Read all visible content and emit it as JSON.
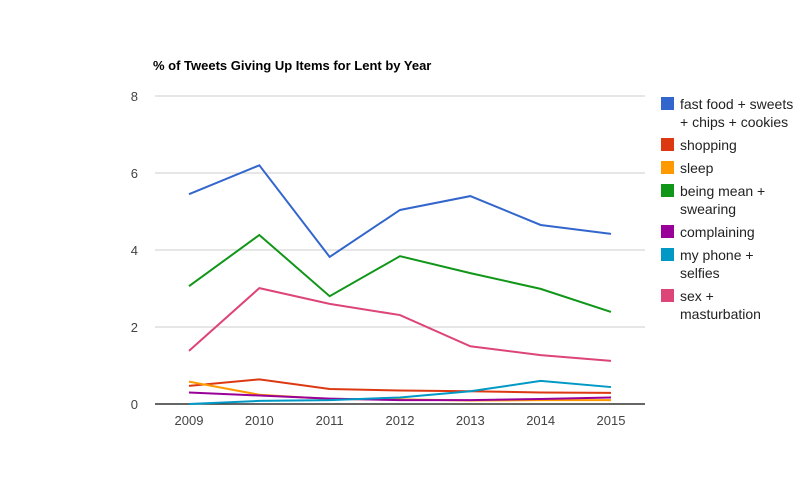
{
  "chart_data": {
    "type": "line",
    "title": "% of Tweets Giving Up Items for Lent by Year",
    "xlabel": "",
    "ylabel": "",
    "x": [
      "2009",
      "2010",
      "2011",
      "2012",
      "2013",
      "2014",
      "2015"
    ],
    "ylim": [
      0,
      8
    ],
    "yticks": [
      "0",
      "2",
      "4",
      "6",
      "8"
    ],
    "grid": true,
    "legend_position": "right",
    "series": [
      {
        "name": "fast food + sweets + chips + cookies",
        "color": "#3366cc",
        "values": [
          5.45,
          6.2,
          3.82,
          5.04,
          5.4,
          4.65,
          4.42
        ]
      },
      {
        "name": "shopping",
        "color": "#dc3912",
        "values": [
          0.47,
          0.64,
          0.39,
          0.35,
          0.33,
          0.3,
          0.29
        ]
      },
      {
        "name": "sleep",
        "color": "#ff9900",
        "values": [
          0.58,
          0.24,
          0.13,
          0.12,
          0.09,
          0.1,
          0.1
        ]
      },
      {
        "name": "being mean + swearing",
        "color": "#109618",
        "values": [
          3.06,
          4.39,
          2.8,
          3.84,
          3.4,
          2.99,
          2.39
        ]
      },
      {
        "name": "complaining",
        "color": "#990099",
        "values": [
          0.3,
          0.22,
          0.14,
          0.1,
          0.1,
          0.13,
          0.17
        ]
      },
      {
        "name": "my phone + selfies",
        "color": "#0099c6",
        "values": [
          0.0,
          0.08,
          0.1,
          0.17,
          0.33,
          0.6,
          0.44
        ]
      },
      {
        "name": "sex + masturbation",
        "color": "#dd4477",
        "values": [
          1.38,
          3.01,
          2.6,
          2.31,
          1.5,
          1.27,
          1.12
        ]
      }
    ]
  }
}
